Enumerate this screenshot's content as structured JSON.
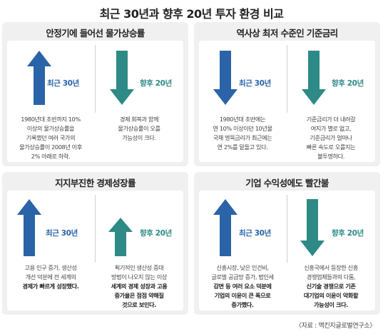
{
  "title": "최근 30년과 향후 20년 투자 환경 비교",
  "colors": {
    "blue_arrow": "#2a63a8",
    "teal_arrow": "#2d8a86",
    "panel_bg": "#f0f0f0"
  },
  "panels": [
    {
      "title": "안정기에 들어선 물가상승률",
      "left": {
        "label": "최근 30년",
        "arrow": "up-arrow-icon",
        "lines": [
          "1980년대 초반까지 10%",
          "이상의 물가상승률을",
          "기록했던 여러 국가의",
          "물가상승률이 2008년 이후",
          "2% 아래로 하락."
        ]
      },
      "right": {
        "label": "향후 20년",
        "arrow": "down-arrow-icon",
        "lines": [
          "경제 회복과 함께",
          "물가상승률이 오를",
          "가능성이 크다."
        ]
      }
    },
    {
      "title": "역사상 최저 수준인 기준금리",
      "left": {
        "label": "최근 30년",
        "arrow": "down-arrow-icon",
        "lines": [
          "1980년대 초반에는",
          "연 10% 이상이던 10년물",
          "국채 명목금리가 최근에는",
          "연 2%를 밑돌고 있다."
        ]
      },
      "right": {
        "label": "향후 20년",
        "arrow": "down-arrow-icon",
        "lines": [
          "기준금리가 더 내려갈",
          "여지가 별로 없고,",
          "기준금리가 얼마나",
          "빠른 속도로 오를지는",
          "불투명하다."
        ]
      }
    },
    {
      "title": "지지부진한 경제성장률",
      "left": {
        "label": "최근 30년",
        "arrow": "up-arrow-icon",
        "lines": [
          "고용 인구 증가, 생산성",
          "개선 덕분에 전 세계의"
        ],
        "bold_lines": [
          "경제가 빠르게 성장했다."
        ]
      },
      "right": {
        "label": "향후 20년",
        "arrow": "up-arrow-icon",
        "lines": [
          "획기적인 생산성 증대",
          "방법이 나오지 않는 이상"
        ],
        "bold_lines": [
          "세계의 경제 성장과 고용",
          "증가율은 점점 약해질",
          "것으로 보인다."
        ]
      }
    },
    {
      "title": "기업 수익성에도 빨간불",
      "left": {
        "label": "최근 30년",
        "arrow": "up-arrow-icon",
        "lines": [
          "신흥시장, 낮은 인건비,",
          "글로벌 공급망 증가, 법인세"
        ],
        "bold_lines": [
          "감면 등 여러 요소 덕분에",
          "기업의 이윤이 큰 폭으로",
          "증가했다."
        ]
      },
      "right": {
        "label": "향후 20년",
        "arrow": "down-arrow-icon",
        "lines": [
          "신흥국에서 등장한 신흥",
          "경쟁업체들과의 다툼,"
        ],
        "bold_lines": [
          "신기술 경쟁으로 기존",
          "대기업의 이윤이 악화할",
          "가능성이 크다."
        ]
      }
    }
  ],
  "source": "〈자료 : 맥킨지글로벌연구소〉"
}
